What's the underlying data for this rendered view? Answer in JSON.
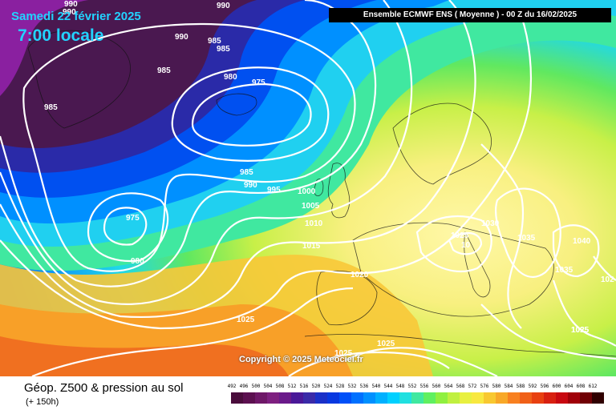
{
  "header": {
    "date": "Samedi 22 février 2025",
    "time": "7:00 locale",
    "model": "Ensemble ECMWF ENS  ( Moyenne )  -  00 Z du 16/02/2025"
  },
  "footer": {
    "title": "Géop. Z500 & pression au sol",
    "subtitle": "(+ 150h)",
    "copyright": "Copyright © 2025 Meteociel.fr"
  },
  "legend": {
    "values": [
      "492",
      "496",
      "500",
      "504",
      "508",
      "512",
      "516",
      "520",
      "524",
      "528",
      "532",
      "536",
      "540",
      "544",
      "548",
      "552",
      "556",
      "560",
      "564",
      "568",
      "572",
      "576",
      "580",
      "584",
      "588",
      "592",
      "596",
      "600",
      "604",
      "608",
      "612"
    ],
    "colors": [
      "#4a0d3c",
      "#5c1050",
      "#6e1868",
      "#7e2080",
      "#6a1a8a",
      "#4a1898",
      "#3a2aa8",
      "#1a30c8",
      "#0838e0",
      "#0050f8",
      "#0070ff",
      "#0090ff",
      "#00b0ff",
      "#00d0ff",
      "#20e0e0",
      "#40e8a0",
      "#60f060",
      "#90f040",
      "#c0f040",
      "#e8f040",
      "#f8e840",
      "#f8c830",
      "#f8a828",
      "#f88020",
      "#f06018",
      "#e84010",
      "#d82010",
      "#c80810",
      "#a00008",
      "#700004",
      "#300000"
    ]
  },
  "map": {
    "pressure_labels": [
      {
        "text": "990"
      },
      {
        "text": "990"
      },
      {
        "text": "990"
      },
      {
        "text": "990"
      },
      {
        "text": "985"
      },
      {
        "text": "985"
      },
      {
        "text": "985"
      },
      {
        "text": "980"
      },
      {
        "text": "975"
      },
      {
        "text": "985"
      },
      {
        "text": "985"
      },
      {
        "text": "990"
      },
      {
        "text": "995"
      },
      {
        "text": "1000"
      },
      {
        "text": "1005"
      },
      {
        "text": "975"
      },
      {
        "text": "1010"
      },
      {
        "text": "980"
      },
      {
        "text": "1015"
      },
      {
        "text": "1020"
      },
      {
        "text": "1025"
      },
      {
        "text": "1025"
      },
      {
        "text": "1025"
      },
      {
        "text": "1025"
      },
      {
        "text": "1030"
      },
      {
        "text": "1025"
      },
      {
        "text": "1035"
      },
      {
        "text": "1040"
      },
      {
        "text": "1035"
      },
      {
        "text": "1025"
      },
      {
        "text": "102"
      },
      {
        "text": "10"
      }
    ]
  }
}
